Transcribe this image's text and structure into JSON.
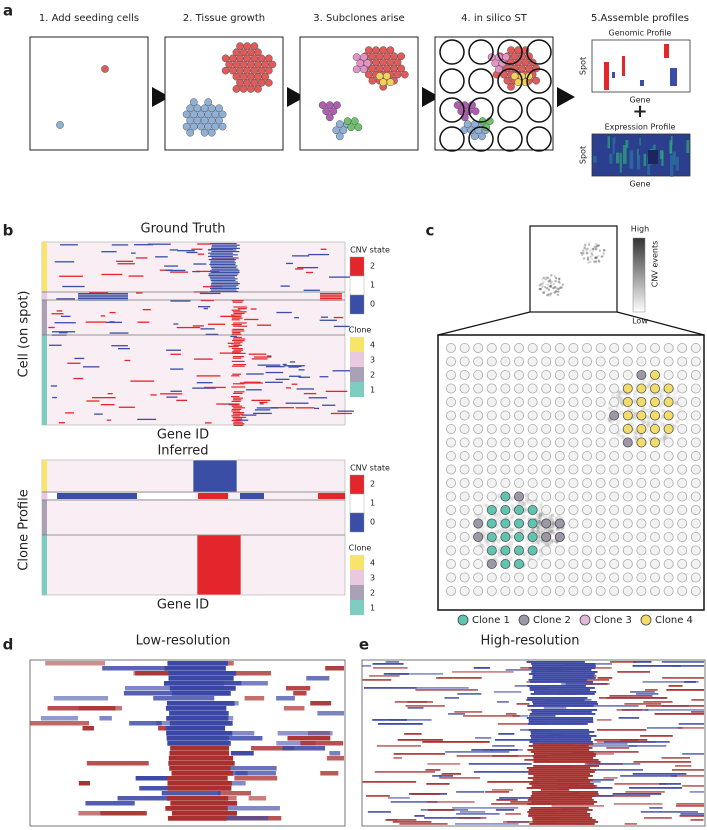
{
  "panels": {
    "a": {
      "label": "a",
      "steps": [
        "1. Add seeding cells",
        "2. Tissue growth",
        "3. Subclones arise",
        "4. in silico ST",
        "5.Assemble profiles"
      ],
      "genomic_profile": {
        "title": "Genomic Profile",
        "y_label": "Spot",
        "x_label": "Gene"
      },
      "plus": "+",
      "expression_profile": {
        "title": "Expression Profile",
        "y_label": "Spot",
        "x_label": "Gene"
      }
    },
    "b": {
      "label": "b",
      "cnv_legend": {
        "title": "CNV state",
        "items": [
          {
            "label": "2",
            "color": "#e3262b"
          },
          {
            "label": "1",
            "color": "#ffffff"
          },
          {
            "label": "0",
            "color": "#3a4ea6"
          }
        ]
      },
      "clone_legend": {
        "title": "Clone",
        "items": [
          {
            "label": "4",
            "color": "#f7e46b"
          },
          {
            "label": "3",
            "color": "#e8c9e0"
          },
          {
            "label": "2",
            "color": "#a9a2b6"
          },
          {
            "label": "1",
            "color": "#7fcdc0"
          }
        ]
      },
      "ground_truth": {
        "title": "Ground Truth",
        "y_label": "Cell (on spot)",
        "x_label": "Gene ID"
      },
      "inferred": {
        "title": "Inferred",
        "y_label": "Clone Profile",
        "x_label": "Gene ID"
      }
    },
    "c": {
      "label": "c",
      "colorbar": {
        "title": "CNV events",
        "high": "High",
        "low": "Low"
      },
      "legend": [
        {
          "label": "Clone 1",
          "color": "#5fc4b0"
        },
        {
          "label": "Clone 2",
          "color": "#9d97a8"
        },
        {
          "label": "Clone 3",
          "color": "#e3b8d8"
        },
        {
          "label": "Clone 4",
          "color": "#f3dd6a"
        }
      ]
    },
    "d": {
      "label": "d",
      "title": "Low-resolution"
    },
    "e": {
      "label": "e",
      "title": "High-resolution"
    }
  }
}
